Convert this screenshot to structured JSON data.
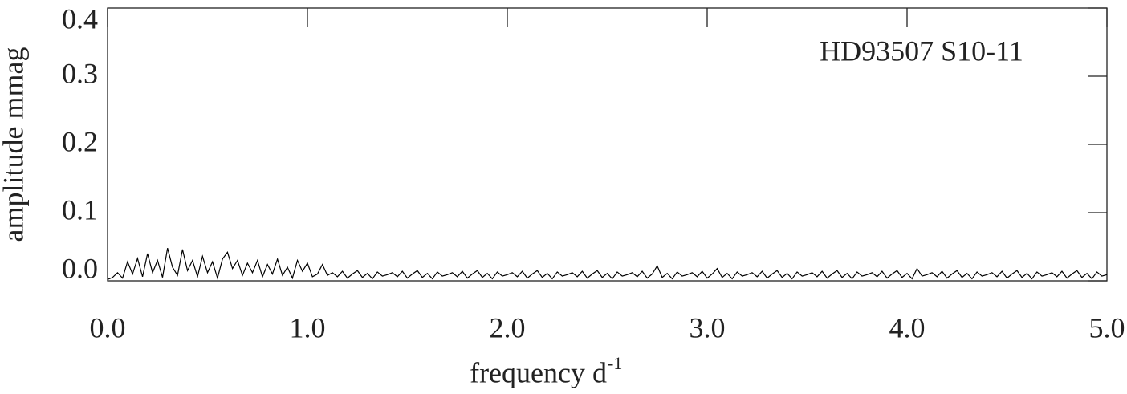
{
  "chart_data": {
    "type": "line",
    "xlabel": "frequency d",
    "xlabel_superscript": "-1",
    "ylabel": "amplitude mmag",
    "annotation": "HD93507 S10-11",
    "color": "#000000",
    "xlim": [
      0,
      5
    ],
    "ylim": [
      0,
      0.4
    ],
    "xticks": [
      {
        "value": 0,
        "label": "0.0"
      },
      {
        "value": 1,
        "label": "1.0"
      },
      {
        "value": 2,
        "label": "2.0"
      },
      {
        "value": 3,
        "label": "3.0"
      },
      {
        "value": 4,
        "label": "4.0"
      },
      {
        "value": 5,
        "label": "5.0"
      }
    ],
    "yticks": [
      {
        "value": 0,
        "label": "0.0"
      },
      {
        "value": 0.1,
        "label": "0.1"
      },
      {
        "value": 0.2,
        "label": "0.2"
      },
      {
        "value": 0.3,
        "label": "0.3"
      },
      {
        "value": 0.4,
        "label": "0.4"
      }
    ],
    "x": [
      0,
      0.025,
      0.05,
      0.075,
      0.1,
      0.125,
      0.15,
      0.175,
      0.2,
      0.225,
      0.25,
      0.275,
      0.3,
      0.325,
      0.35,
      0.375,
      0.4,
      0.425,
      0.45,
      0.475,
      0.5,
      0.525,
      0.55,
      0.575,
      0.6,
      0.625,
      0.65,
      0.675,
      0.7,
      0.725,
      0.75,
      0.775,
      0.8,
      0.825,
      0.85,
      0.875,
      0.9,
      0.925,
      0.95,
      0.975,
      1,
      1.025,
      1.05,
      1.075,
      1.1,
      1.125,
      1.15,
      1.175,
      1.2,
      1.225,
      1.25,
      1.275,
      1.3,
      1.325,
      1.35,
      1.375,
      1.4,
      1.425,
      1.45,
      1.475,
      1.5,
      1.525,
      1.55,
      1.575,
      1.6,
      1.625,
      1.65,
      1.675,
      1.7,
      1.725,
      1.75,
      1.775,
      1.8,
      1.825,
      1.85,
      1.875,
      1.9,
      1.925,
      1.95,
      1.975,
      2,
      2.025,
      2.05,
      2.075,
      2.1,
      2.125,
      2.15,
      2.175,
      2.2,
      2.225,
      2.25,
      2.275,
      2.3,
      2.325,
      2.35,
      2.375,
      2.4,
      2.425,
      2.45,
      2.475,
      2.5,
      2.525,
      2.55,
      2.575,
      2.6,
      2.625,
      2.65,
      2.675,
      2.7,
      2.725,
      2.75,
      2.775,
      2.8,
      2.825,
      2.85,
      2.875,
      2.9,
      2.925,
      2.95,
      2.975,
      3,
      3.025,
      3.05,
      3.075,
      3.1,
      3.125,
      3.15,
      3.175,
      3.2,
      3.225,
      3.25,
      3.275,
      3.3,
      3.325,
      3.35,
      3.375,
      3.4,
      3.425,
      3.45,
      3.475,
      3.5,
      3.525,
      3.55,
      3.575,
      3.6,
      3.625,
      3.65,
      3.675,
      3.7,
      3.725,
      3.75,
      3.775,
      3.8,
      3.825,
      3.85,
      3.875,
      3.9,
      3.925,
      3.95,
      3.975,
      4,
      4.025,
      4.05,
      4.075,
      4.1,
      4.125,
      4.15,
      4.175,
      4.2,
      4.225,
      4.25,
      4.275,
      4.3,
      4.325,
      4.35,
      4.375,
      4.4,
      4.425,
      4.45,
      4.475,
      4.5,
      4.525,
      4.55,
      4.575,
      4.6,
      4.625,
      4.65,
      4.675,
      4.7,
      4.725,
      4.75,
      4.775,
      4.8,
      4.825,
      4.85,
      4.875,
      4.9,
      4.925,
      4.95,
      4.975,
      5
    ],
    "values": [
      0.002,
      0.005,
      0.012,
      0.004,
      0.028,
      0.01,
      0.033,
      0.006,
      0.04,
      0.012,
      0.03,
      0.005,
      0.048,
      0.02,
      0.008,
      0.046,
      0.015,
      0.03,
      0.006,
      0.036,
      0.012,
      0.028,
      0.004,
      0.032,
      0.042,
      0.018,
      0.03,
      0.008,
      0.026,
      0.012,
      0.03,
      0.006,
      0.024,
      0.01,
      0.032,
      0.008,
      0.02,
      0.004,
      0.03,
      0.014,
      0.026,
      0.006,
      0.01,
      0.024,
      0.008,
      0.012,
      0.006,
      0.014,
      0.004,
      0.01,
      0.015,
      0.005,
      0.011,
      0.003,
      0.013,
      0.007,
      0.009,
      0.012,
      0.006,
      0.014,
      0.004,
      0.01,
      0.015,
      0.005,
      0.011,
      0.003,
      0.013,
      0.007,
      0.009,
      0.012,
      0.006,
      0.014,
      0.004,
      0.01,
      0.015,
      0.005,
      0.011,
      0.003,
      0.013,
      0.007,
      0.009,
      0.012,
      0.006,
      0.014,
      0.004,
      0.01,
      0.015,
      0.005,
      0.011,
      0.003,
      0.013,
      0.007,
      0.009,
      0.012,
      0.006,
      0.014,
      0.004,
      0.01,
      0.015,
      0.005,
      0.011,
      0.003,
      0.013,
      0.007,
      0.009,
      0.012,
      0.006,
      0.014,
      0.004,
      0.01,
      0.022,
      0.005,
      0.011,
      0.003,
      0.013,
      0.007,
      0.009,
      0.012,
      0.006,
      0.014,
      0.004,
      0.01,
      0.018,
      0.005,
      0.011,
      0.003,
      0.013,
      0.007,
      0.009,
      0.012,
      0.006,
      0.014,
      0.004,
      0.01,
      0.015,
      0.005,
      0.011,
      0.003,
      0.013,
      0.007,
      0.009,
      0.012,
      0.006,
      0.014,
      0.004,
      0.01,
      0.015,
      0.005,
      0.011,
      0.003,
      0.013,
      0.007,
      0.009,
      0.012,
      0.006,
      0.014,
      0.004,
      0.01,
      0.015,
      0.005,
      0.011,
      0.003,
      0.018,
      0.007,
      0.009,
      0.012,
      0.006,
      0.014,
      0.004,
      0.01,
      0.015,
      0.005,
      0.011,
      0.003,
      0.013,
      0.007,
      0.009,
      0.012,
      0.006,
      0.014,
      0.004,
      0.01,
      0.015,
      0.005,
      0.011,
      0.003,
      0.013,
      0.007,
      0.009,
      0.012,
      0.006,
      0.014,
      0.004,
      0.01,
      0.015,
      0.005,
      0.011,
      0.003,
      0.013,
      0.007,
      0.009
    ]
  }
}
